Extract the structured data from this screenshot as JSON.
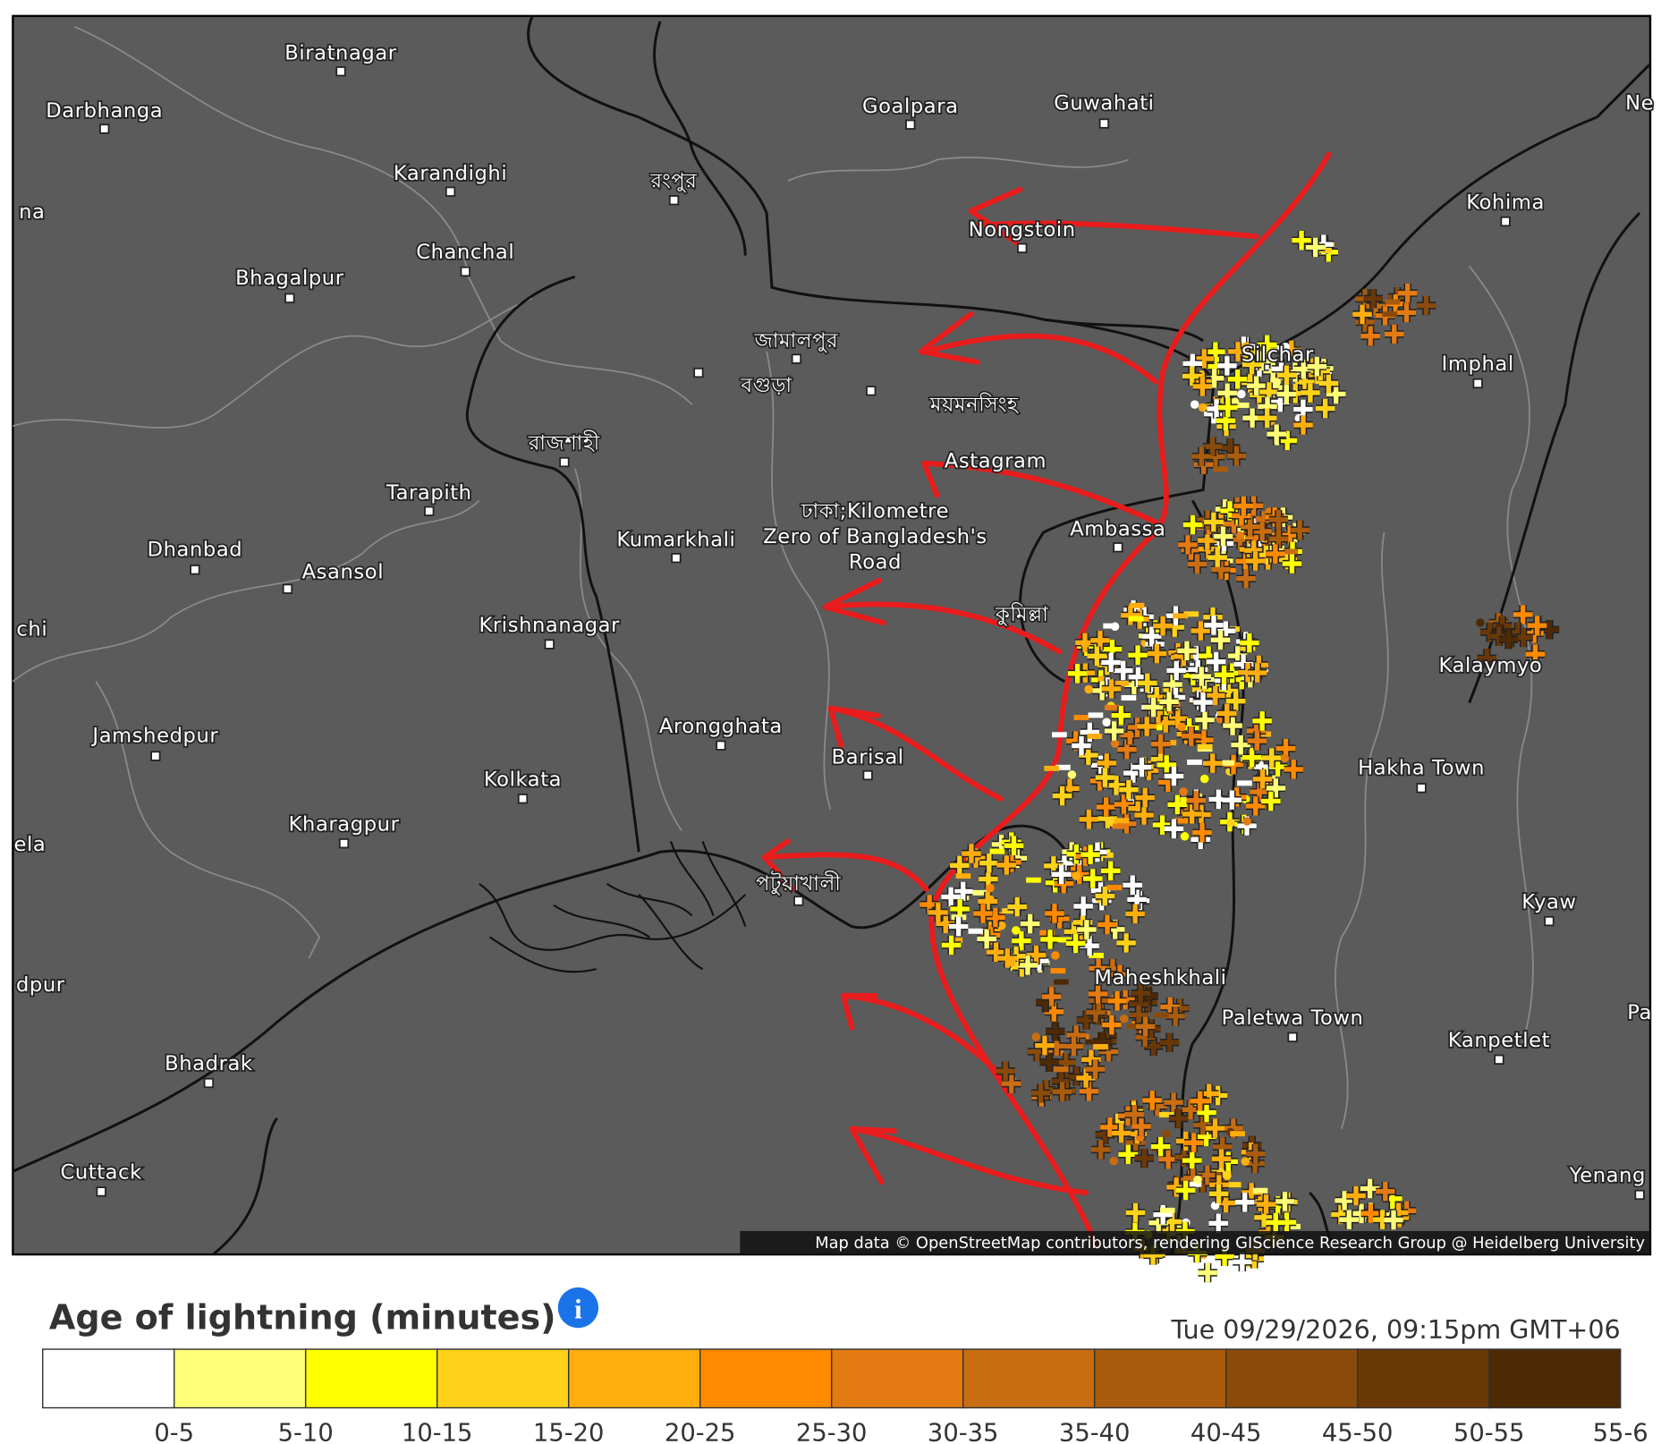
{
  "map": {
    "labels": [
      {
        "text": "Biratnagar"
      },
      {
        "text": "Darbhanga"
      },
      {
        "text": "Goalpara"
      },
      {
        "text": "Guwahati"
      },
      {
        "text": "Karandighi"
      },
      {
        "text": "রংপুর"
      },
      {
        "text": "na"
      },
      {
        "text": "Chanchal"
      },
      {
        "text": "Bhagalpur"
      },
      {
        "text": "Nongstoin"
      },
      {
        "text": "Kohima"
      },
      {
        "text": "জামালপুর"
      },
      {
        "text": "বগুড়া"
      },
      {
        "text": "ময়মনসিংহ"
      },
      {
        "text": "Silchar"
      },
      {
        "text": "Imphal"
      },
      {
        "text": "রাজশাহী"
      },
      {
        "text": "Tarapith"
      },
      {
        "text": "Astagram"
      },
      {
        "text": "ঢাকা;Kilometre"
      },
      {
        "text": "Zero of Bangladesh's"
      },
      {
        "text": "Road"
      },
      {
        "text": "Dhanbad"
      },
      {
        "text": "Asansol"
      },
      {
        "text": "Kumarkhali"
      },
      {
        "text": "Ambassa"
      },
      {
        "text": "কুমিল্লা"
      },
      {
        "text": "Krishnanagar"
      },
      {
        "text": "chi"
      },
      {
        "text": "Kalaymyo"
      },
      {
        "text": "Jamshedpur"
      },
      {
        "text": "Arongghata"
      },
      {
        "text": "Barisal"
      },
      {
        "text": "Kolkata"
      },
      {
        "text": "Hakha Town"
      },
      {
        "text": "Kharagpur"
      },
      {
        "text": "ela"
      },
      {
        "text": "পটুয়াখালী"
      },
      {
        "text": "Kyaw"
      },
      {
        "text": "dpur"
      },
      {
        "text": "Maheshkhali"
      },
      {
        "text": "Paletwa Town"
      },
      {
        "text": "Kanpetlet"
      },
      {
        "text": "Pa"
      },
      {
        "text": "Bhadrak"
      },
      {
        "text": "Cuttack"
      },
      {
        "text": "Yenang"
      },
      {
        "text": "Ne"
      }
    ],
    "attribution": "Map data © OpenStreetMap contributors, rendering GIScience Research Group @ Heidelberg University"
  },
  "legend": {
    "title": "Age of lightning (minutes)",
    "timestamp": "Tue 09/29/2026, 09:15pm GMT+06",
    "items": [
      {
        "label": "0-5",
        "color": "#ffffff"
      },
      {
        "label": "5-10",
        "color": "#ffff77"
      },
      {
        "label": "10-15",
        "color": "#ffff00"
      },
      {
        "label": "15-20",
        "color": "#ffd21a"
      },
      {
        "label": "20-25",
        "color": "#ffae0d"
      },
      {
        "label": "25-30",
        "color": "#ff8a00"
      },
      {
        "label": "30-35",
        "color": "#e47a12"
      },
      {
        "label": "35-40",
        "color": "#c96d12"
      },
      {
        "label": "40-45",
        "color": "#a95c0c"
      },
      {
        "label": "45-50",
        "color": "#8a4b0a"
      },
      {
        "label": "50-55",
        "color": "#6a3807"
      },
      {
        "label": "55-6",
        "color": "#4d2a05"
      }
    ]
  }
}
